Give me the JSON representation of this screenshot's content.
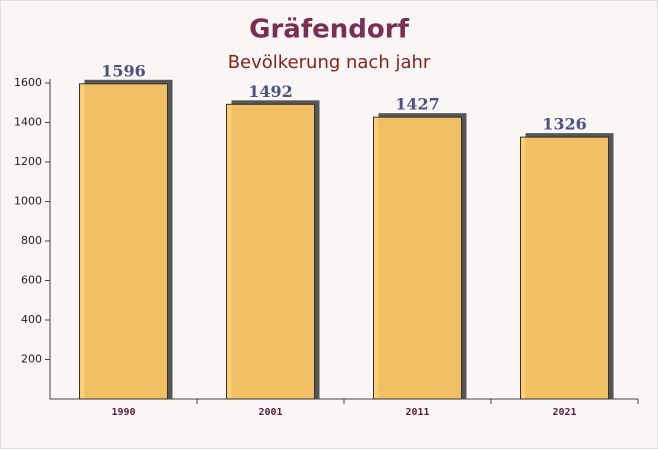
{
  "chart_data": {
    "type": "bar",
    "title": "Gräfendorf",
    "subtitle": "Bevölkerung nach jahr",
    "categories": [
      "1990",
      "2001",
      "2011",
      "2021"
    ],
    "values": [
      1596,
      1492,
      1427,
      1326
    ],
    "color": "#ffc966",
    "ylim": [
      0,
      1600
    ],
    "yticks": [
      200,
      400,
      600,
      800,
      1000,
      1200,
      1400,
      1600
    ]
  }
}
